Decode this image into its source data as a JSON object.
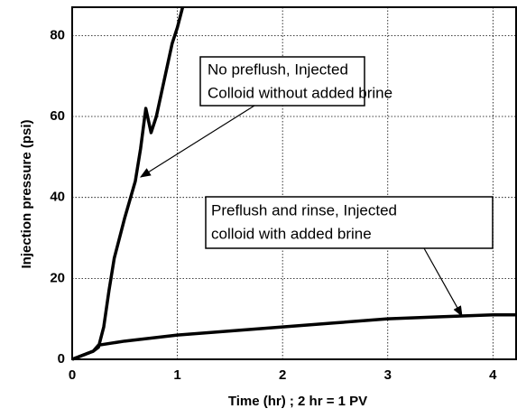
{
  "chart_data": {
    "type": "line",
    "xlabel": "Time  (hr) ;  2  hr  =  1  PV",
    "ylabel": "Injection   pressure   (psi)",
    "xlim": [
      0,
      4.22
    ],
    "ylim": [
      0,
      87
    ],
    "xticks": [
      0,
      1,
      2,
      3,
      4
    ],
    "yticks": [
      0,
      20,
      40,
      60,
      80
    ],
    "grid": true,
    "series": [
      {
        "name": "No preflush, Injected Colloid without added brine",
        "color": "#000000",
        "x": [
          0,
          0.1,
          0.2,
          0.25,
          0.3,
          0.35,
          0.4,
          0.5,
          0.6,
          0.65,
          0.7,
          0.75,
          0.8,
          0.85,
          0.9,
          0.95,
          1.0,
          1.05
        ],
        "values": [
          0,
          1,
          2,
          3,
          8,
          17,
          25,
          35,
          44,
          52,
          62,
          56,
          60,
          66,
          72,
          78,
          82,
          87
        ]
      },
      {
        "name": "Preflush and rinse, Injected colloid with added brine",
        "color": "#000000",
        "x": [
          0,
          0.2,
          0.25,
          0.5,
          1.0,
          1.5,
          2.0,
          2.5,
          3.0,
          3.5,
          4.0,
          4.22
        ],
        "values": [
          0,
          2,
          3.5,
          4.5,
          6,
          7,
          8,
          9,
          10,
          10.5,
          11,
          11
        ]
      }
    ],
    "annotations": [
      {
        "lines": [
          "No preflush, Injected",
          "Colloid without added brine"
        ]
      },
      {
        "lines": [
          "Preflush and rinse, Injected",
          "colloid with added brine"
        ]
      }
    ]
  }
}
